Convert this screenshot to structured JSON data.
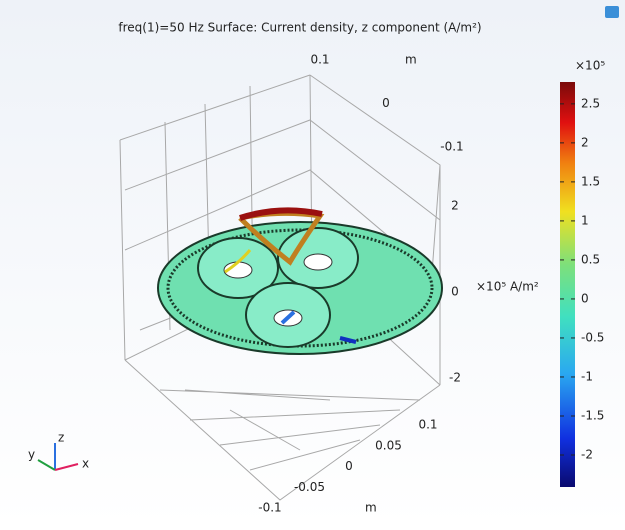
{
  "chart_data": {
    "type": "surface3d",
    "title": "freq(1)=50 Hz   Surface: Current density, z component (A/m²)",
    "back_axis": {
      "unit": "m",
      "lim": [
        -0.1,
        0.1
      ],
      "ticks": [
        0.1,
        0,
        -0.1
      ]
    },
    "front_axis": {
      "unit": "m",
      "lim": [
        -0.1,
        0.1
      ],
      "ticks": [
        0.1,
        0.05,
        0,
        -0.05,
        -0.1
      ]
    },
    "z_axis": {
      "unit": "×10⁵ A/m²",
      "lim": [
        -2,
        2
      ],
      "ticks": [
        2,
        0,
        -2
      ]
    },
    "colorbar": {
      "multiplier": "×10⁵",
      "clim": [
        -2.41,
        2.78
      ],
      "ticks": [
        2.5,
        2,
        1.5,
        1,
        0.5,
        0,
        -0.5,
        -1,
        -1.5,
        -2
      ]
    },
    "triad": {
      "x": "x",
      "y": "y",
      "z": "z"
    }
  }
}
